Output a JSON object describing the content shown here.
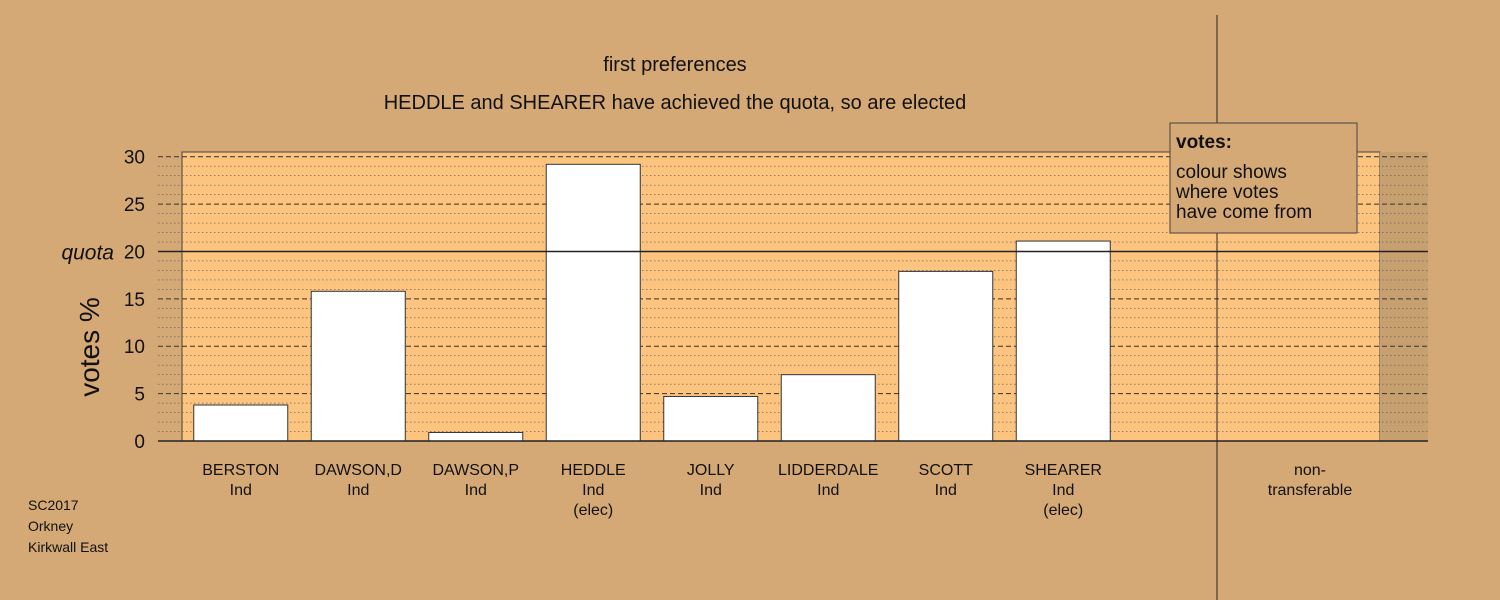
{
  "chart_data": {
    "type": "bar",
    "title": "first preferences",
    "subtitle": "HEDDLE and SHEARER have achieved the quota, so are elected",
    "ylabel": "votes %",
    "ylim": [
      0,
      30.5
    ],
    "yticks": [
      0,
      5,
      10,
      15,
      20,
      25,
      30
    ],
    "quota": 20,
    "quota_label": "quota",
    "grid": true,
    "candidates": [
      {
        "name": "BERSTON",
        "party": "Ind",
        "status": "",
        "value": 3.8
      },
      {
        "name": "DAWSON,D",
        "party": "Ind",
        "status": "",
        "value": 15.8
      },
      {
        "name": "DAWSON,P",
        "party": "Ind",
        "status": "",
        "value": 0.9
      },
      {
        "name": "HEDDLE",
        "party": "Ind",
        "status": "(elec)",
        "value": 29.2
      },
      {
        "name": "JOLLY",
        "party": "Ind",
        "status": "",
        "value": 4.7
      },
      {
        "name": "LIDDERDALE",
        "party": "Ind",
        "status": "",
        "value": 7.0
      },
      {
        "name": "SCOTT",
        "party": "Ind",
        "status": "",
        "value": 17.9
      },
      {
        "name": "SHEARER",
        "party": "Ind",
        "status": "(elec)",
        "value": 21.1
      }
    ],
    "non_transferable": {
      "line1": "non-",
      "line2": "transferable",
      "value": 0
    },
    "legend": {
      "position": "top-right",
      "title": "votes:",
      "lines": [
        "colour shows",
        "where votes",
        "have come from"
      ]
    },
    "colors": {
      "background": "#d4a976",
      "plot_area": "#fdc47f",
      "bar_fill": "#ffffff",
      "legend_fill": "#d4a976"
    }
  },
  "footer": {
    "line1": "SC2017",
    "line2": "Orkney",
    "line3": "Kirkwall East"
  }
}
